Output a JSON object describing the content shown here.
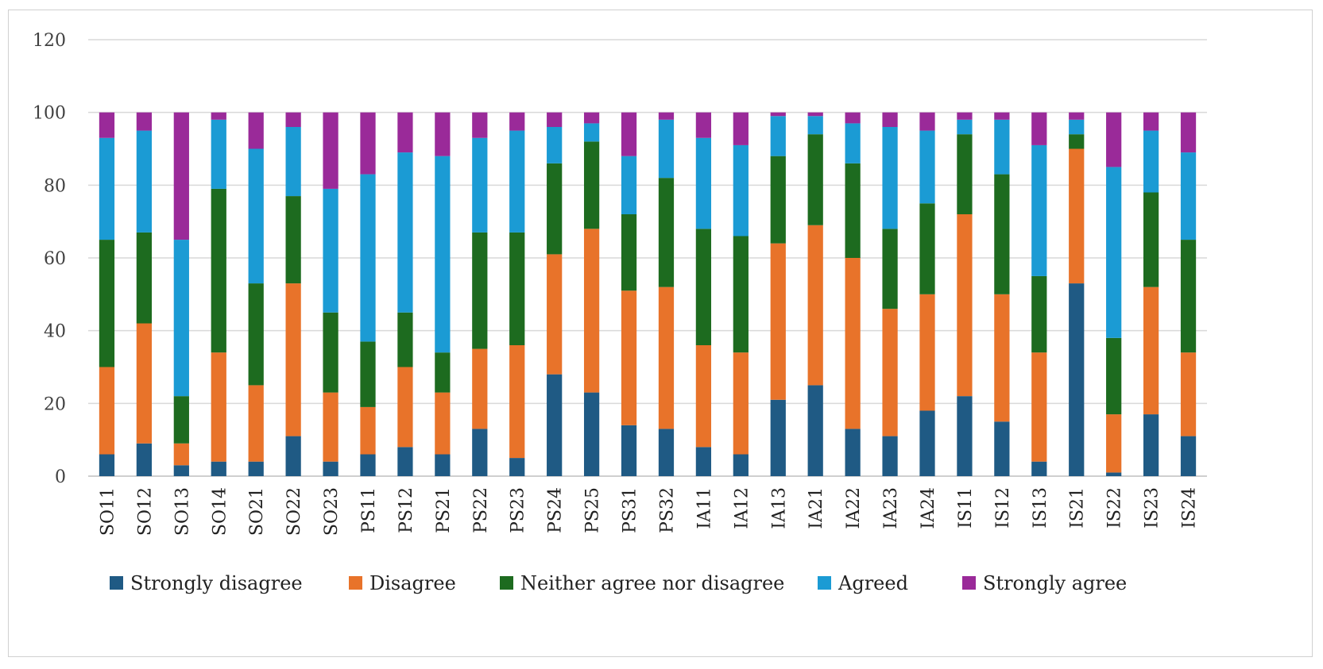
{
  "chart_data": {
    "type": "bar",
    "stacked": true,
    "ylim": [
      0,
      120
    ],
    "yticks": [
      0,
      20,
      40,
      60,
      80,
      100,
      120
    ],
    "grid": true,
    "legend_position": "bottom",
    "categories": [
      "SO11",
      "SO12",
      "SO13",
      "SO14",
      "SO21",
      "SO22",
      "SO23",
      "PS11",
      "PS12",
      "PS21",
      "PS22",
      "PS23",
      "PS24",
      "PS25",
      "PS31",
      "PS32",
      "IA11",
      "IA12",
      "IA13",
      "IA21",
      "IA22",
      "IA23",
      "IA24",
      "IS11",
      "IS12",
      "IS13",
      "IS21",
      "IS22",
      "IS23",
      "IS24"
    ],
    "series": [
      {
        "name": "Strongly disagree",
        "color": "#1f5a84",
        "values": [
          6,
          9,
          3,
          4,
          4,
          11,
          4,
          6,
          8,
          6,
          13,
          5,
          28,
          23,
          14,
          13,
          8,
          6,
          21,
          25,
          13,
          11,
          18,
          22,
          15,
          4,
          53,
          1,
          17,
          11
        ]
      },
      {
        "name": "Disagree",
        "color": "#e8732a",
        "values": [
          24,
          33,
          6,
          30,
          21,
          42,
          19,
          13,
          22,
          17,
          22,
          31,
          33,
          45,
          37,
          39,
          28,
          28,
          43,
          44,
          47,
          35,
          32,
          50,
          35,
          30,
          37,
          16,
          35,
          23
        ]
      },
      {
        "name": "Neither agree nor disagree",
        "color": "#1d6b1f",
        "values": [
          35,
          25,
          13,
          45,
          28,
          24,
          22,
          18,
          15,
          11,
          32,
          31,
          25,
          24,
          21,
          30,
          32,
          32,
          24,
          25,
          26,
          22,
          25,
          22,
          33,
          21,
          4,
          21,
          26,
          31
        ]
      },
      {
        "name": "Agreed",
        "color": "#1b9bd4",
        "values": [
          28,
          28,
          43,
          19,
          37,
          19,
          34,
          46,
          44,
          54,
          26,
          28,
          10,
          5,
          16,
          16,
          25,
          25,
          11,
          5,
          11,
          28,
          20,
          4,
          15,
          36,
          4,
          47,
          17,
          24
        ]
      },
      {
        "name": "Strongly agree",
        "color": "#9a2a99",
        "values": [
          7,
          5,
          35,
          2,
          10,
          4,
          21,
          17,
          11,
          12,
          7,
          5,
          4,
          3,
          12,
          2,
          7,
          9,
          1,
          1,
          3,
          4,
          5,
          2,
          2,
          9,
          2,
          15,
          5,
          11
        ]
      }
    ]
  }
}
